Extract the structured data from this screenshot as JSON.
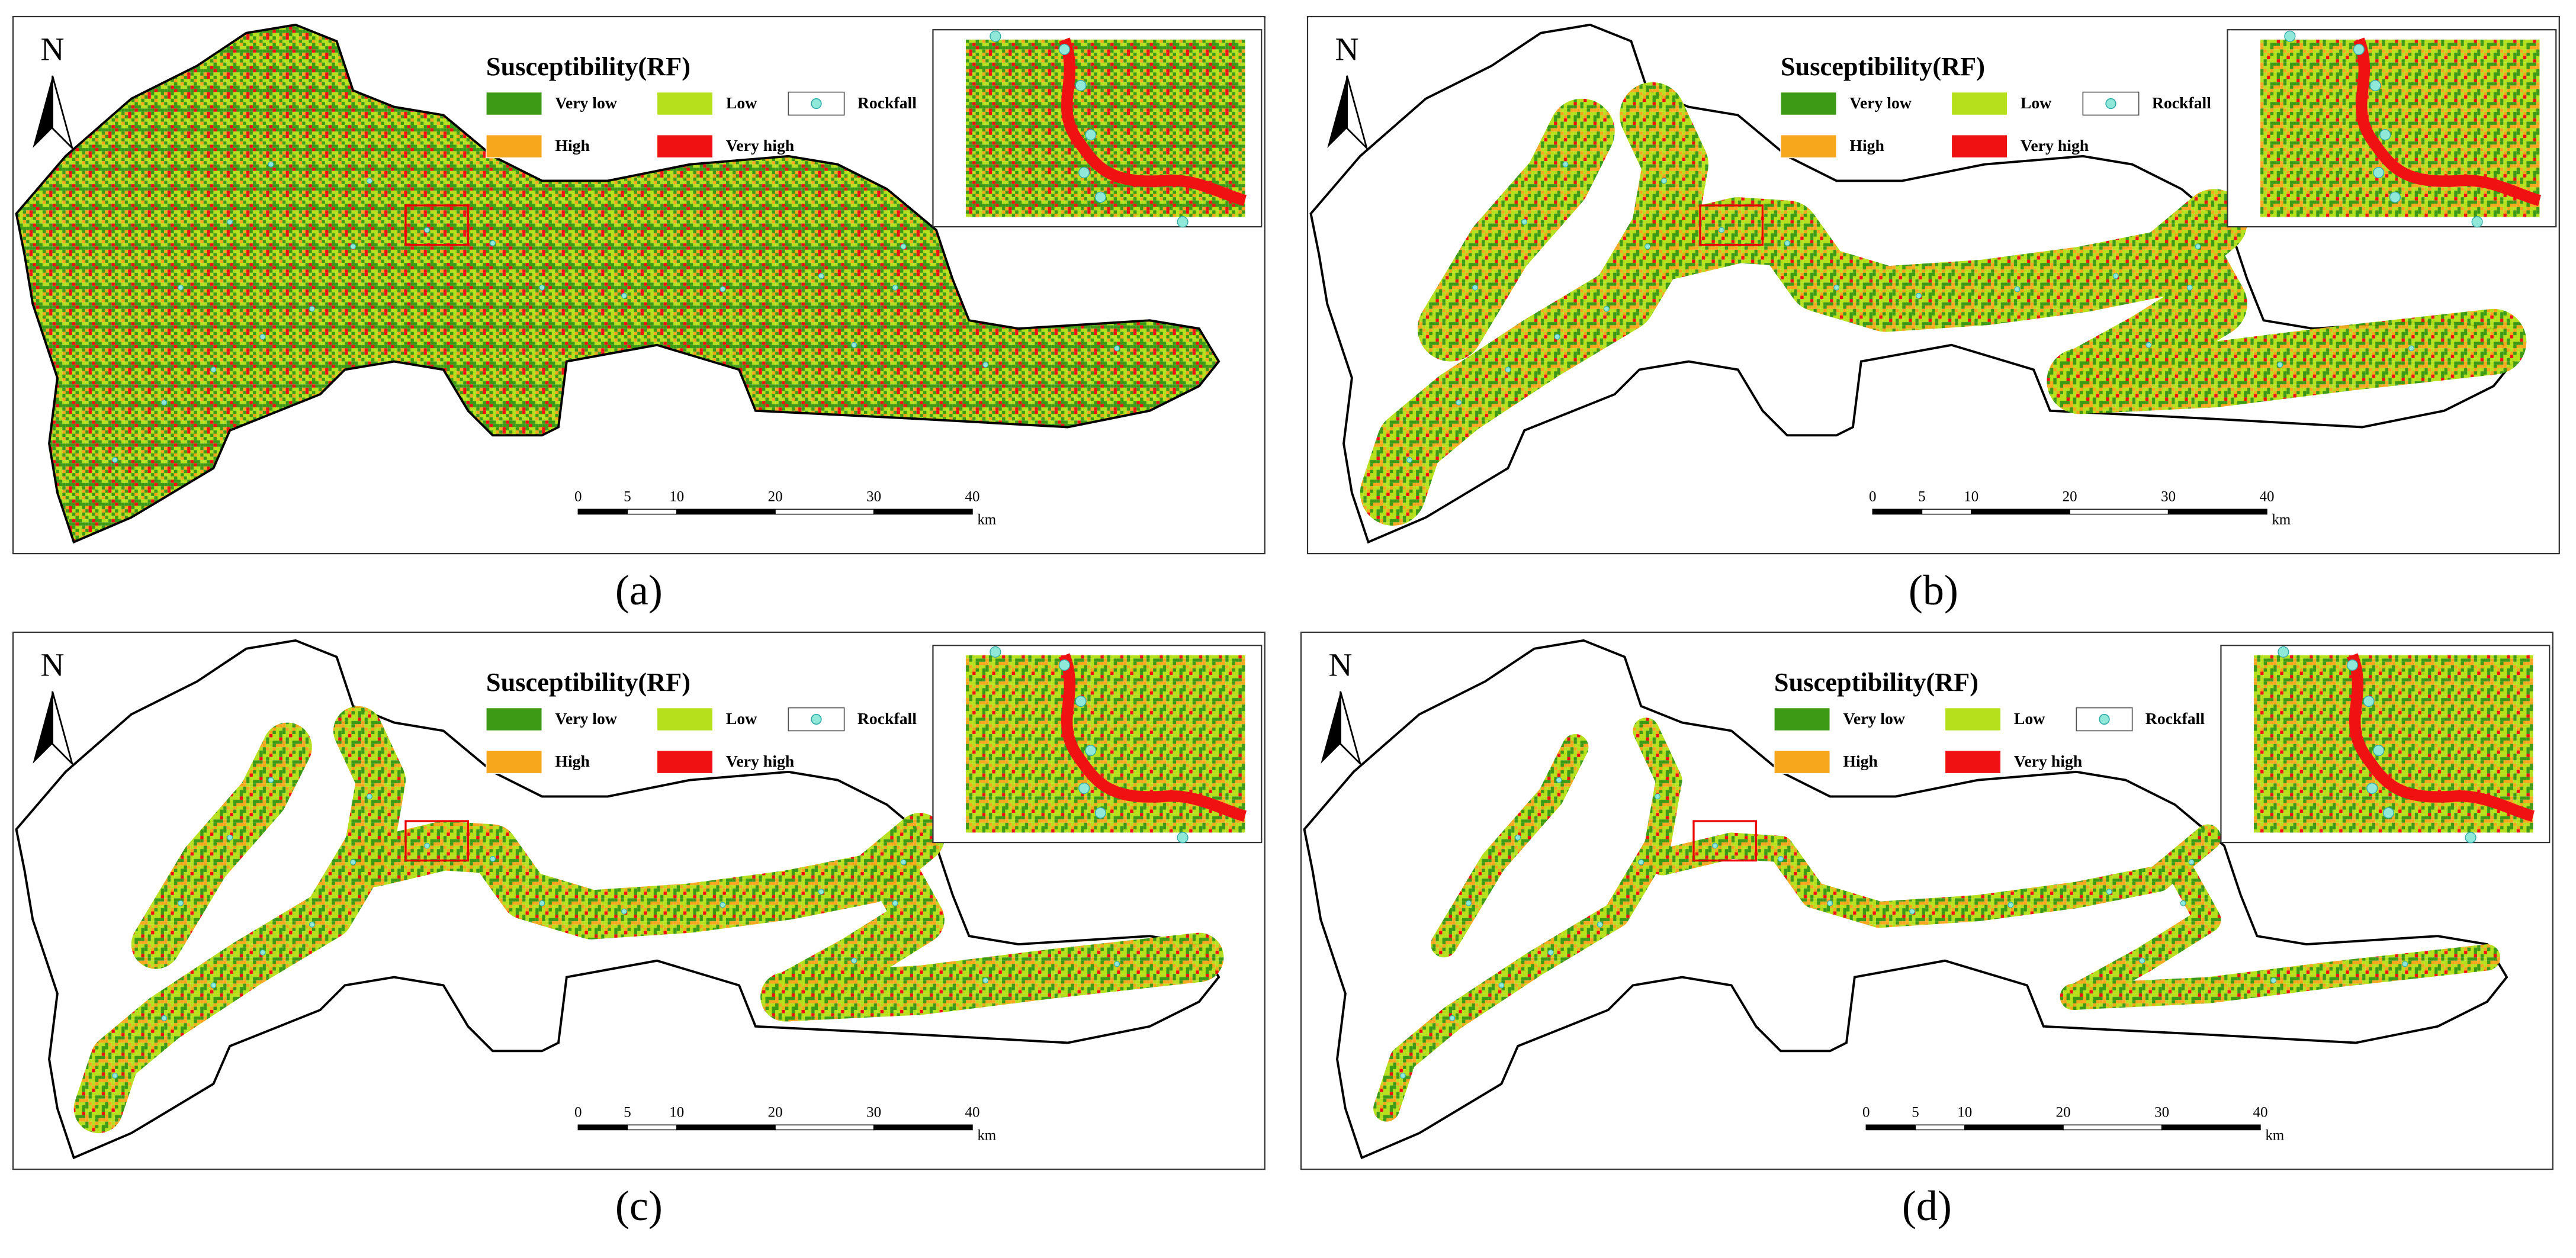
{
  "panels": [
    {
      "label": "(a)",
      "north": "N",
      "legend": {
        "title": "Susceptibility(RF)",
        "items": [
          {
            "label": "Very low",
            "color": "#3c9a14"
          },
          {
            "label": "Low",
            "color": "#b6e01c"
          },
          {
            "label": "Rockfall"
          },
          {
            "label": "High",
            "color": "#f7a71c"
          },
          {
            "label": "Very high",
            "color": "#f01212"
          }
        ]
      },
      "scale_bar": {
        "ticks": [
          0,
          5,
          10,
          20,
          30,
          40
        ],
        "unit": "km"
      }
    },
    {
      "label": "(b)",
      "north": "N",
      "legend": {
        "title": "Susceptibility(RF)",
        "items": [
          {
            "label": "Very low",
            "color": "#3c9a14"
          },
          {
            "label": "Low",
            "color": "#b6e01c"
          },
          {
            "label": "Rockfall"
          },
          {
            "label": "High",
            "color": "#f7a71c"
          },
          {
            "label": "Very high",
            "color": "#f01212"
          }
        ]
      },
      "scale_bar": {
        "ticks": [
          0,
          5,
          10,
          20,
          30,
          40
        ],
        "unit": "km"
      }
    },
    {
      "label": "(c)",
      "north": "N",
      "legend": {
        "title": "Susceptibility(RF)",
        "items": [
          {
            "label": "Very low",
            "color": "#3c9a14"
          },
          {
            "label": "Low",
            "color": "#b6e01c"
          },
          {
            "label": "Rockfall"
          },
          {
            "label": "High",
            "color": "#f7a71c"
          },
          {
            "label": "Very high",
            "color": "#f01212"
          }
        ]
      },
      "scale_bar": {
        "ticks": [
          0,
          5,
          10,
          20,
          30,
          40
        ],
        "unit": "km"
      }
    },
    {
      "label": "(d)",
      "north": "N",
      "legend": {
        "title": "Susceptibility(RF)",
        "items": [
          {
            "label": "Very low",
            "color": "#3c9a14"
          },
          {
            "label": "Low",
            "color": "#b6e01c"
          },
          {
            "label": "Rockfall"
          },
          {
            "label": "High",
            "color": "#f7a71c"
          },
          {
            "label": "Very high",
            "color": "#f01212"
          }
        ]
      },
      "scale_bar": {
        "ticks": [
          0,
          5,
          10,
          20,
          30,
          40
        ],
        "unit": "km"
      }
    }
  ]
}
